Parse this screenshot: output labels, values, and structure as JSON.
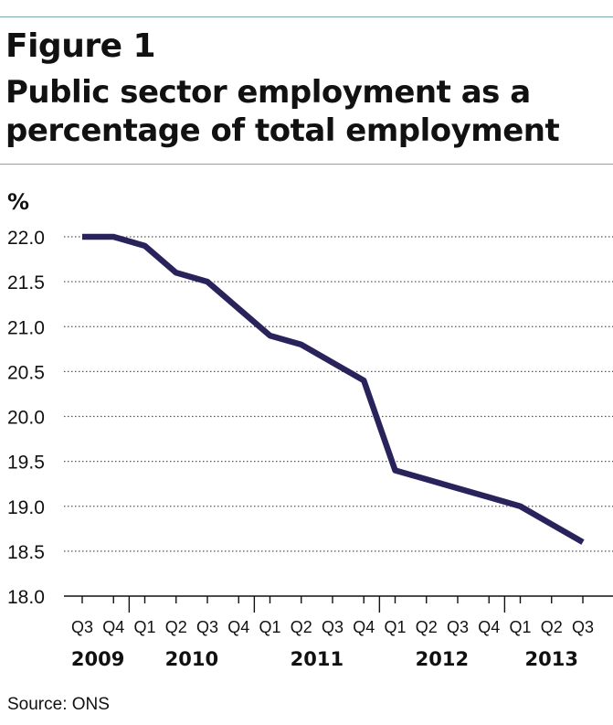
{
  "figure_label": "Figure 1",
  "title": "Public sector employment as a percentage of total employment",
  "source": "Source: ONS",
  "colors": {
    "label": "#1f6170",
    "line": "#29235c",
    "rule": "#7fa7b0",
    "text": "#111111"
  },
  "chart_data": {
    "type": "line",
    "title": "Public sector employment as a percentage of total employment",
    "ylabel": "%",
    "xlabel": "",
    "ylim": [
      18.0,
      22.0
    ],
    "yticks": [
      "18.0",
      "18.5",
      "19.0",
      "19.5",
      "20.0",
      "20.5",
      "21.0",
      "21.5",
      "22.0"
    ],
    "grid": true,
    "categories": [
      "Q3",
      "Q4",
      "Q1",
      "Q2",
      "Q3",
      "Q4",
      "Q1",
      "Q2",
      "Q3",
      "Q4",
      "Q1",
      "Q2",
      "Q3",
      "Q4",
      "Q1",
      "Q2",
      "Q3"
    ],
    "years": [
      {
        "label": "2009",
        "start": 0,
        "end": 1
      },
      {
        "label": "2010",
        "start": 2,
        "end": 5
      },
      {
        "label": "2011",
        "start": 6,
        "end": 9
      },
      {
        "label": "2012",
        "start": 10,
        "end": 13
      },
      {
        "label": "2013",
        "start": 14,
        "end": 16
      }
    ],
    "series": [
      {
        "values": [
          22.0,
          22.0,
          21.9,
          21.6,
          21.5,
          21.2,
          20.9,
          20.8,
          20.6,
          20.4,
          19.4,
          19.3,
          19.2,
          19.1,
          19.0,
          18.8,
          18.6
        ]
      }
    ]
  }
}
